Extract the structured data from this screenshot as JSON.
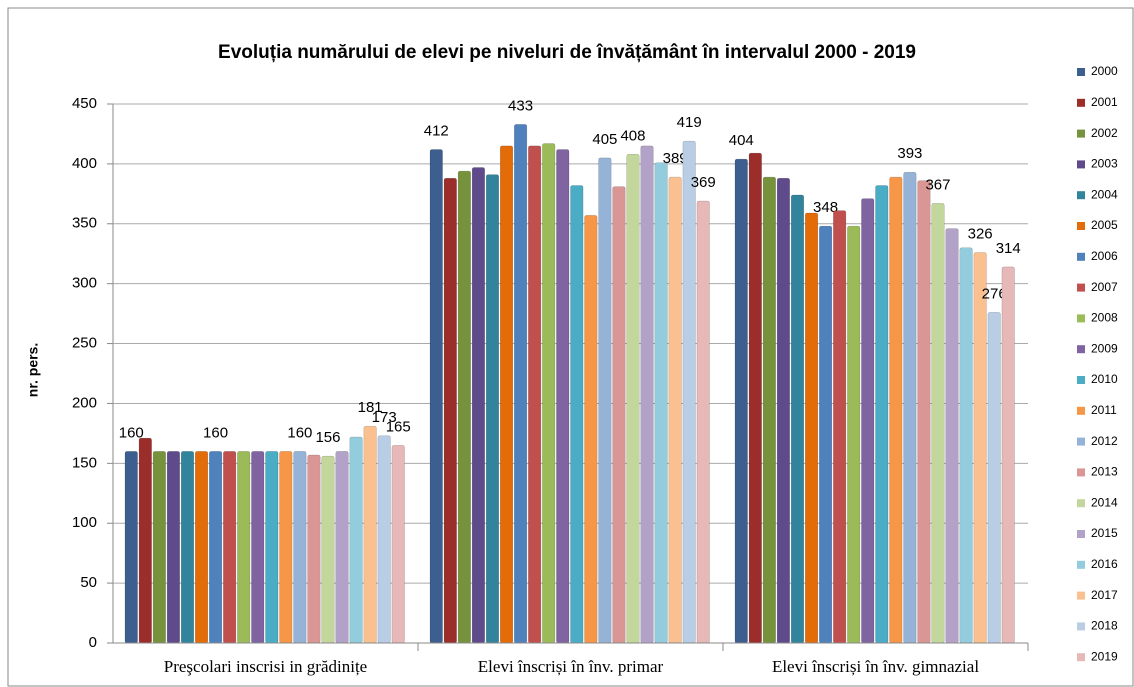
{
  "chart_data": {
    "type": "bar",
    "title": "Evoluția numărului de elevi pe niveluri de învățământ în intervalul 2000 - 2019",
    "y_label": "nr. pers.",
    "categories": [
      "Preşcolari inscrisi in grădinițe",
      "Elevi înscriși în înv. primar",
      "Elevi înscriși în înv. gimnazial"
    ],
    "ylim": [
      0,
      450
    ],
    "yticks": [
      0,
      50,
      100,
      150,
      200,
      250,
      300,
      350,
      400,
      450
    ],
    "grid": true,
    "legend": "right",
    "series": [
      {
        "name": "2000",
        "color": "#3d5f8f",
        "values": [
          160,
          412,
          404
        ],
        "value_labels": [
          "160",
          "412",
          "404"
        ]
      },
      {
        "name": "2001",
        "color": "#9b2d2a",
        "values": [
          171,
          388,
          409
        ]
      },
      {
        "name": "2002",
        "color": "#76923c",
        "values": [
          160,
          394,
          389
        ]
      },
      {
        "name": "2003",
        "color": "#5f4b8b",
        "values": [
          160,
          397,
          388
        ]
      },
      {
        "name": "2004",
        "color": "#31849b",
        "values": [
          160,
          391,
          374
        ]
      },
      {
        "name": "2005",
        "color": "#e36c09",
        "values": [
          160,
          415,
          359
        ]
      },
      {
        "name": "2006",
        "color": "#4f81bd",
        "values": [
          160,
          433,
          348
        ],
        "value_labels": [
          "160",
          "433",
          "348"
        ]
      },
      {
        "name": "2007",
        "color": "#c0504d",
        "values": [
          160,
          415,
          361
        ]
      },
      {
        "name": "2008",
        "color": "#9bbb59",
        "values": [
          160,
          417,
          348
        ]
      },
      {
        "name": "2009",
        "color": "#8064a2",
        "values": [
          160,
          412,
          371
        ]
      },
      {
        "name": "2010",
        "color": "#4bacc6",
        "values": [
          160,
          382,
          382
        ]
      },
      {
        "name": "2011",
        "color": "#f79646",
        "values": [
          160,
          357,
          389
        ]
      },
      {
        "name": "2012",
        "color": "#95b3d7",
        "values": [
          160,
          405,
          393
        ],
        "value_labels": [
          "160",
          "405",
          "393"
        ]
      },
      {
        "name": "2013",
        "color": "#d99694",
        "values": [
          157,
          381,
          386
        ]
      },
      {
        "name": "2014",
        "color": "#c3d69b",
        "values": [
          156,
          408,
          367
        ],
        "value_labels": [
          "156",
          "408",
          "367"
        ]
      },
      {
        "name": "2015",
        "color": "#b3a2c7",
        "values": [
          160,
          415,
          346
        ]
      },
      {
        "name": "2016",
        "color": "#93cddd",
        "values": [
          172,
          401,
          330
        ]
      },
      {
        "name": "2017",
        "color": "#fac090",
        "values": [
          181,
          389,
          326
        ],
        "value_labels": [
          "181",
          "389",
          "326"
        ]
      },
      {
        "name": "2018",
        "color": "#b9cde5",
        "values": [
          173,
          419,
          276
        ],
        "value_labels": [
          "173",
          "419",
          "276"
        ]
      },
      {
        "name": "2019",
        "color": "#e6b9b8",
        "values": [
          165,
          369,
          314
        ],
        "value_labels": [
          "165",
          "369",
          "314"
        ]
      }
    ]
  }
}
